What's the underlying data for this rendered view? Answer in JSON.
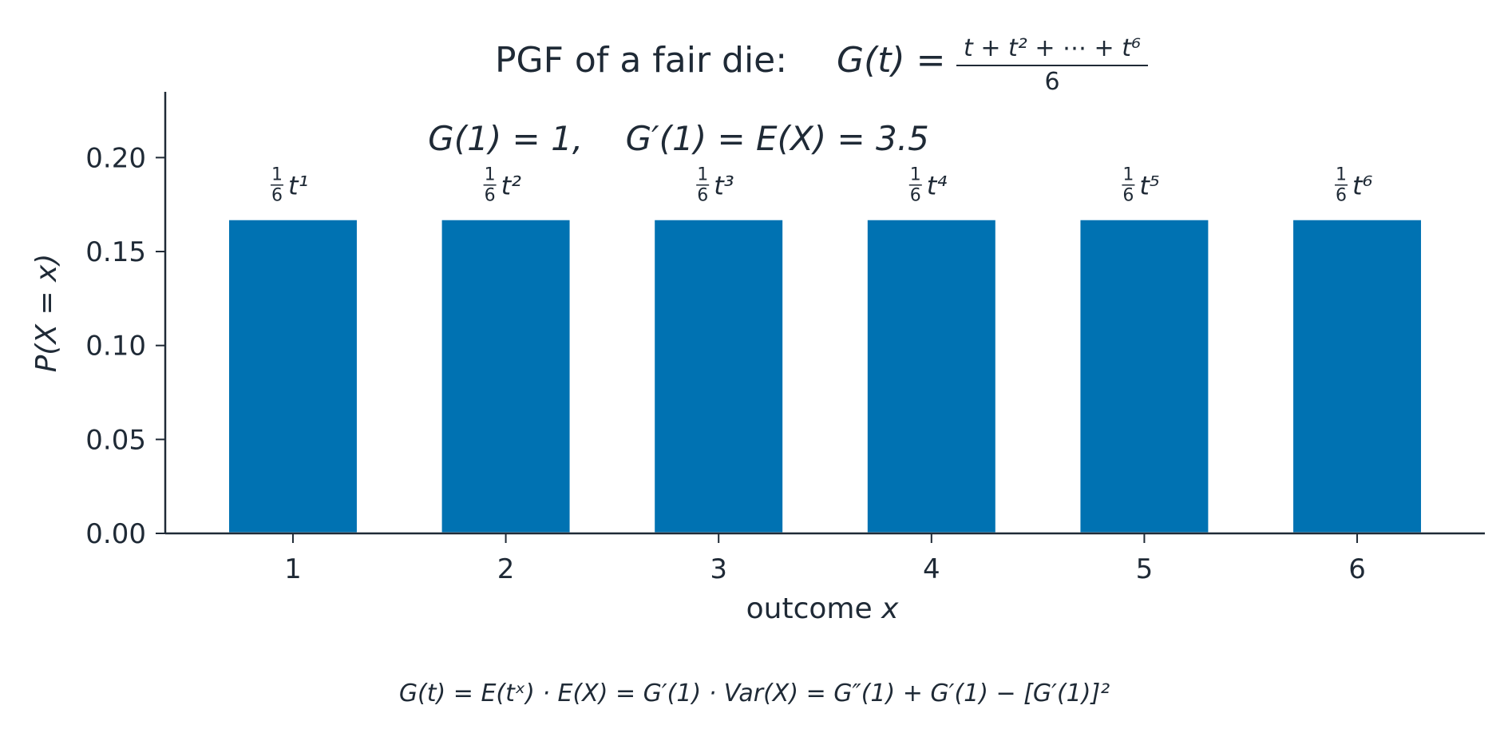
{
  "chart_data": {
    "type": "bar",
    "title_prefix": "PGF of a fair die:",
    "title_formula_lhs": "G(t) =",
    "title_formula_numerator": "t + t² + ⋯ + t⁶",
    "title_formula_denominator": "6",
    "annotation": "G(1) = 1,    G′(1) = E(X) = 3.5",
    "xlabel": "outcome",
    "xlabel_var": "x",
    "ylabel": "P(X = x)",
    "categories": [
      "1",
      "2",
      "3",
      "4",
      "5",
      "6"
    ],
    "x": [
      1,
      2,
      3,
      4,
      5,
      6
    ],
    "values": [
      0.1667,
      0.1667,
      0.1667,
      0.1667,
      0.1667,
      0.1667
    ],
    "bar_labels": [
      "t¹",
      "t²",
      "t³",
      "t⁴",
      "t⁵",
      "t⁶"
    ],
    "bar_label_coef_num": "1",
    "bar_label_coef_den": "6",
    "yticks": [
      "0.00",
      "0.05",
      "0.10",
      "0.15",
      "0.20"
    ],
    "ytick_values": [
      0,
      0.05,
      0.1,
      0.15,
      0.2
    ],
    "ylim": [
      0,
      0.235
    ],
    "xlim": [
      0.4,
      6.6
    ],
    "bar_color": "#0072b2",
    "grid": false,
    "footer": "G(t) = E(tˣ)  ·  E(X) = G′(1)  ·  Var(X) = G″(1) + G′(1) − [G′(1)]²"
  }
}
